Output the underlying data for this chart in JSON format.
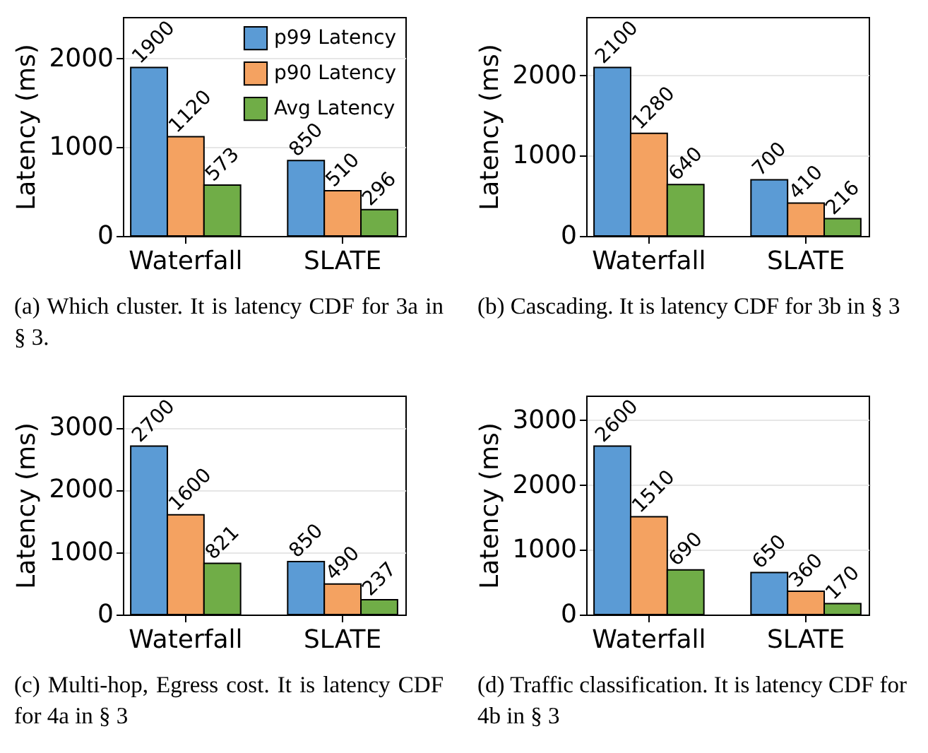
{
  "chart_data": [
    {
      "type": "bar",
      "categories": [
        "Waterfall",
        "SLATE"
      ],
      "ylabel": "Latency (ms)",
      "ylim": [
        0,
        2470
      ],
      "yticks": [
        0,
        1000,
        2000
      ],
      "grid": "y",
      "legend": "top right",
      "data_labels": true,
      "annotations": [
        "(a) Which cluster. It is latency CDF for 3a in § 3."
      ],
      "series": [
        {
          "name": "p99 Latency",
          "color": "#5b9bd5",
          "values": [
            1900,
            850
          ]
        },
        {
          "name": "p90 Latency",
          "color": "#f4a261",
          "values": [
            1120,
            510
          ]
        },
        {
          "name": "Avg Latency",
          "color": "#70ad47",
          "values": [
            573,
            296
          ]
        }
      ]
    },
    {
      "type": "bar",
      "categories": [
        "Waterfall",
        "SLATE"
      ],
      "ylabel": "Latency (ms)",
      "ylim": [
        0,
        2730
      ],
      "yticks": [
        0,
        1000,
        2000
      ],
      "grid": "y",
      "data_labels": true,
      "annotations": [
        "(b) Cascading. It is latency CDF for 3b in § 3"
      ],
      "series": [
        {
          "color": "#5b9bd5",
          "values": [
            2100,
            700
          ]
        },
        {
          "color": "#f4a261",
          "values": [
            1280,
            410
          ]
        },
        {
          "color": "#70ad47",
          "values": [
            640,
            216
          ]
        }
      ]
    },
    {
      "type": "bar",
      "categories": [
        "Waterfall",
        "SLATE"
      ],
      "ylabel": "Latency (ms)",
      "ylim": [
        0,
        3510
      ],
      "yticks": [
        0,
        1000,
        2000,
        3000
      ],
      "grid": "y",
      "data_labels": true,
      "annotations": [
        "(c) Multi-hop, Egress cost. It is latency CDF for 4a in § 3"
      ],
      "series": [
        {
          "color": "#5b9bd5",
          "values": [
            2700,
            850
          ]
        },
        {
          "color": "#f4a261",
          "values": [
            1600,
            490
          ]
        },
        {
          "color": "#70ad47",
          "values": [
            821,
            237
          ]
        }
      ]
    },
    {
      "type": "bar",
      "categories": [
        "Waterfall",
        "SLATE"
      ],
      "ylabel": "Latency (ms)",
      "ylim": [
        0,
        3380
      ],
      "yticks": [
        0,
        1000,
        2000,
        3000
      ],
      "grid": "y",
      "data_labels": true,
      "annotations": [
        "(d) Traffic classification. It is latency CDF for 4b in § 3"
      ],
      "series": [
        {
          "color": "#5b9bd5",
          "values": [
            2600,
            650
          ]
        },
        {
          "color": "#f4a261",
          "values": [
            1510,
            360
          ]
        },
        {
          "color": "#70ad47",
          "values": [
            690,
            170
          ]
        }
      ]
    }
  ]
}
